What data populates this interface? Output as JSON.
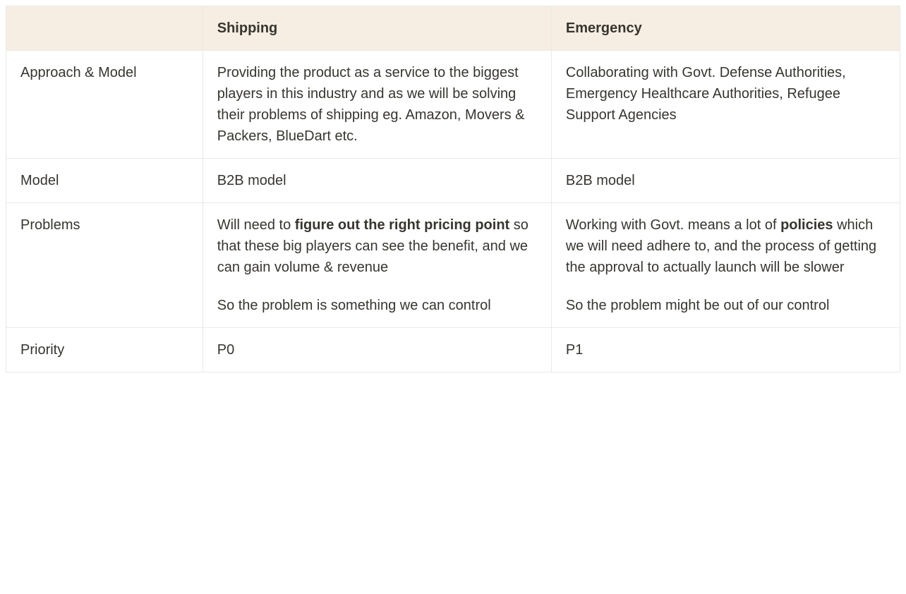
{
  "table": {
    "type": "table",
    "background_color": "#ffffff",
    "header_background": "#f6eee3",
    "border_color": "#e9e9e7",
    "text_color": "#37352f",
    "header_fontsize": 20,
    "body_fontsize": 20,
    "header_fontweight": 600,
    "columns": [
      "",
      "Shipping",
      "Emergency"
    ],
    "column_widths": [
      "22%",
      "39%",
      "39%"
    ],
    "rows": [
      {
        "label": "Approach & Model",
        "shipping": {
          "paragraphs": [
            {
              "segments": [
                {
                  "text": "Providing the product as a service to the biggest players in this industry and as we will be solving their problems of shipping eg. Amazon, Movers & Packers, BlueDart etc.",
                  "bold": false
                }
              ]
            }
          ]
        },
        "emergency": {
          "paragraphs": [
            {
              "segments": [
                {
                  "text": "Collaborating with Govt. Defense Authorities, Emergency Healthcare Authorities, Refugee Support Agencies",
                  "bold": false
                }
              ]
            }
          ]
        }
      },
      {
        "label": "Model",
        "shipping": {
          "paragraphs": [
            {
              "segments": [
                {
                  "text": "B2B model",
                  "bold": false
                }
              ]
            }
          ]
        },
        "emergency": {
          "paragraphs": [
            {
              "segments": [
                {
                  "text": "B2B model",
                  "bold": false
                }
              ]
            }
          ]
        }
      },
      {
        "label": "Problems",
        "shipping": {
          "paragraphs": [
            {
              "segments": [
                {
                  "text": "Will need to ",
                  "bold": false
                },
                {
                  "text": "figure out the right pricing point",
                  "bold": true
                },
                {
                  "text": " so that these big players can see the benefit, and we can gain volume & revenue",
                  "bold": false
                }
              ]
            },
            {
              "segments": [
                {
                  "text": "So the problem is something we can control",
                  "bold": false
                }
              ]
            }
          ]
        },
        "emergency": {
          "paragraphs": [
            {
              "segments": [
                {
                  "text": "Working with Govt. means a lot of ",
                  "bold": false
                },
                {
                  "text": "policies",
                  "bold": true
                },
                {
                  "text": " which we will need adhere to, and the process of getting the approval to actually launch will be slower",
                  "bold": false
                }
              ]
            },
            {
              "segments": [
                {
                  "text": "So the problem might be out of our control",
                  "bold": false
                }
              ]
            }
          ]
        }
      },
      {
        "label": "Priority",
        "shipping": {
          "paragraphs": [
            {
              "segments": [
                {
                  "text": "P0",
                  "bold": false
                }
              ]
            }
          ]
        },
        "emergency": {
          "paragraphs": [
            {
              "segments": [
                {
                  "text": "P1",
                  "bold": false
                }
              ]
            }
          ]
        }
      }
    ]
  }
}
